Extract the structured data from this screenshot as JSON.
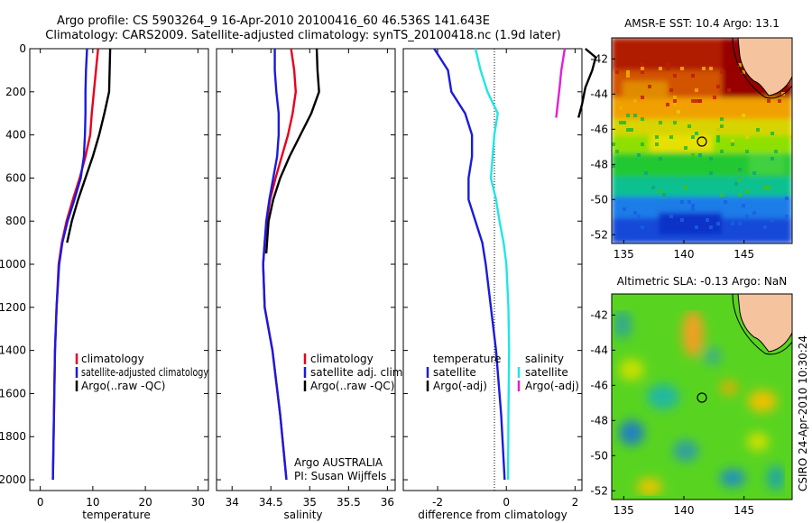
{
  "figure": {
    "title_line1": "Argo profile: CS 5903264_9 16-Apr-2010 20100416_60 46.536S 141.643E",
    "title_line2": "Climatology: CARS2009. Satellite-adjusted climatology: synTS_20100418.nc (1.9d later)",
    "credit": "CSIRO 24-Apr-2010 10:30:24"
  },
  "colors": {
    "climatology": "#e8001c",
    "satellite": "#1a1adf",
    "argo": "#000000",
    "satellite_sal": "#22e5e5",
    "argo_sal_adj": "#e020d8",
    "land": "#f6c39f"
  },
  "chart_data": [
    {
      "type": "line",
      "id": "temperature",
      "xlabel": "temperature",
      "xlim": [
        -2,
        32
      ],
      "ylim": [
        2050,
        0
      ],
      "xticks": [
        0,
        10,
        20,
        30
      ],
      "yticks": [
        0,
        200,
        400,
        600,
        800,
        1000,
        1200,
        1400,
        1600,
        1800,
        2000
      ],
      "legend": [
        "climatology",
        "satellite-adjusted climatology",
        "Argo(..raw -QC)"
      ],
      "series": [
        {
          "name": "climatology",
          "color": "#e8001c",
          "x": [
            11.0,
            10.6,
            10.2,
            9.8,
            9.5,
            8.6,
            7.5,
            6.2,
            5.0,
            4.1,
            3.5,
            3.1,
            2.8,
            2.6,
            2.4
          ],
          "y": [
            0,
            100,
            200,
            300,
            400,
            500,
            600,
            700,
            800,
            900,
            1000,
            1200,
            1400,
            1700,
            2000
          ]
        },
        {
          "name": "satellite-adjusted climatology",
          "color": "#1a1adf",
          "x": [
            8.9,
            8.7,
            8.6,
            8.6,
            8.5,
            8.3,
            7.7,
            6.5,
            5.2,
            4.2,
            3.6,
            3.1,
            2.8,
            2.6,
            2.4
          ],
          "y": [
            0,
            100,
            200,
            300,
            400,
            500,
            600,
            700,
            800,
            900,
            1000,
            1200,
            1400,
            1700,
            2000
          ]
        },
        {
          "name": "Argo(..raw -QC)",
          "color": "#000000",
          "x": [
            13.3,
            13.2,
            13.1,
            12.2,
            11.2,
            10.0,
            8.6,
            7.2,
            6.0,
            5.1
          ],
          "y": [
            0,
            100,
            200,
            300,
            400,
            500,
            600,
            700,
            800,
            900
          ]
        }
      ]
    },
    {
      "type": "line",
      "id": "salinity",
      "xlabel": "salinity",
      "xlim": [
        33.8,
        36.1
      ],
      "ylim": [
        2050,
        0
      ],
      "xticks": [
        34,
        34.5,
        35,
        35.5,
        36
      ],
      "yticks": [
        0,
        200,
        400,
        600,
        800,
        1000,
        1200,
        1400,
        1600,
        1800,
        2000
      ],
      "legend": [
        "climatology",
        "satellite adj. clim.",
        "Argo(..raw -QC)"
      ],
      "annotation_line1": "Argo AUSTRALIA",
      "annotation_line2": "PI: Susan Wijffels",
      "series": [
        {
          "name": "climatology",
          "color": "#e8001c",
          "x": [
            34.76,
            34.8,
            34.82,
            34.78,
            34.72,
            34.64,
            34.56,
            34.49,
            34.45,
            34.42,
            34.4,
            34.42,
            34.52,
            34.62,
            34.7
          ],
          "y": [
            0,
            100,
            200,
            300,
            400,
            500,
            600,
            700,
            800,
            900,
            1000,
            1200,
            1400,
            1700,
            2000
          ]
        },
        {
          "name": "satellite adj. clim.",
          "color": "#1a1adf",
          "x": [
            34.55,
            34.55,
            34.57,
            34.6,
            34.6,
            34.58,
            34.53,
            34.48,
            34.44,
            34.42,
            34.4,
            34.42,
            34.52,
            34.62,
            34.7
          ],
          "y": [
            0,
            100,
            200,
            300,
            400,
            500,
            600,
            700,
            800,
            900,
            1000,
            1200,
            1400,
            1700,
            2000
          ]
        },
        {
          "name": "Argo(..raw -QC)",
          "color": "#000000",
          "x": [
            35.09,
            35.1,
            35.12,
            35.02,
            34.88,
            34.74,
            34.62,
            34.53,
            34.47,
            34.44
          ],
          "y": [
            0,
            100,
            200,
            300,
            400,
            500,
            600,
            700,
            800,
            950
          ]
        }
      ]
    },
    {
      "type": "line",
      "id": "difference",
      "xlabel": "difference from climatology",
      "xlim": [
        -3,
        2.2
      ],
      "ylim": [
        2050,
        0
      ],
      "xticks": [
        -2,
        0,
        2
      ],
      "yticks": [
        0,
        200,
        400,
        600,
        800,
        1000,
        1200,
        1400,
        1600,
        1800,
        2000
      ],
      "legend_temperature": {
        "heading": "temperature",
        "items": [
          "satellite",
          "Argo(-adj)"
        ]
      },
      "legend_salinity": {
        "heading": "salinity",
        "items": [
          "satellite",
          "Argo(-adj)"
        ]
      },
      "series": [
        {
          "name": "satellite",
          "group": "temperature",
          "color": "#1a1adf",
          "x": [
            -2.1,
            -1.7,
            -1.6,
            -1.2,
            -1.0,
            -1.0,
            -1.1,
            -1.1,
            -0.9,
            -0.7,
            -0.6,
            -0.45,
            -0.3,
            -0.15,
            -0.05
          ],
          "y": [
            0,
            100,
            200,
            300,
            400,
            500,
            600,
            700,
            800,
            900,
            1000,
            1200,
            1400,
            1700,
            2000
          ]
        },
        {
          "name": "satellite",
          "group": "salinity",
          "color": "#22e5e5",
          "x": [
            -0.9,
            -0.75,
            -0.55,
            -0.25,
            -0.35,
            -0.4,
            -0.45,
            -0.3,
            -0.2,
            -0.08,
            0.0,
            0.06,
            0.08,
            0.06,
            0.05
          ],
          "y": [
            0,
            100,
            200,
            300,
            400,
            500,
            600,
            700,
            800,
            900,
            1000,
            1200,
            1400,
            1700,
            2000
          ]
        },
        {
          "name": "Argo(-adj)",
          "group": "temperature",
          "color": "#000000",
          "x": [
            2.3,
            2.6,
            2.5,
            2.3,
            2.2,
            2.1
          ],
          "y": [
            0,
            40,
            100,
            180,
            260,
            320
          ]
        },
        {
          "name": "Argo(-adj)",
          "group": "salinity",
          "color": "#e020d8",
          "x": [
            1.7,
            1.65,
            1.6,
            1.55,
            1.5,
            1.45
          ],
          "y": [
            0,
            50,
            100,
            180,
            250,
            320
          ]
        }
      ]
    },
    {
      "type": "heatmap",
      "id": "sst-map",
      "title": "AMSR-E SST: 10.4 Argo: 13.1",
      "xlim": [
        134,
        149
      ],
      "ylim": [
        -52.5,
        -40.8
      ],
      "xticks": [
        135,
        140,
        145
      ],
      "yticks": [
        -42,
        -44,
        -46,
        -48,
        -50,
        -52
      ],
      "marker": {
        "lon": 141.643,
        "lat": -46.536
      }
    },
    {
      "type": "heatmap",
      "id": "sla-map",
      "title": "Altimetric SLA: -0.13 Argo: NaN",
      "xlim": [
        134,
        149
      ],
      "ylim": [
        -52.5,
        -40.8
      ],
      "xticks": [
        135,
        140,
        145
      ],
      "yticks": [
        -42,
        -44,
        -46,
        -48,
        -50,
        -52
      ],
      "marker": {
        "lon": 141.643,
        "lat": -46.536
      }
    }
  ]
}
